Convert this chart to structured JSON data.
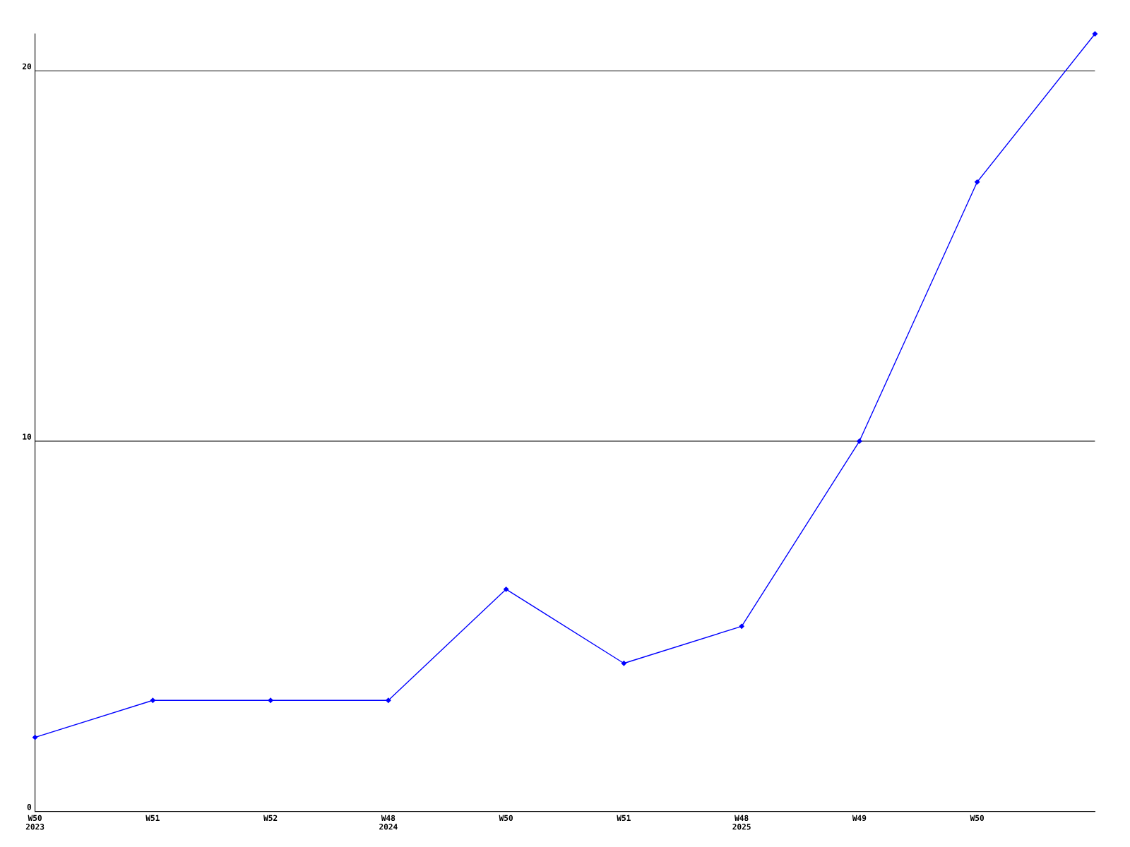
{
  "chart_data": {
    "type": "line",
    "categories": [
      "W50\n2023",
      "W51",
      "W52",
      "W48\n2024",
      "W50",
      "W51",
      "W48\n2025",
      "W49",
      "W50",
      null
    ],
    "series": [
      {
        "color": "#0000ff",
        "values": [
          2,
          3,
          3,
          3,
          6,
          4,
          5,
          10,
          17,
          21
        ]
      }
    ],
    "ylim": [
      0,
      21
    ],
    "yticks": [
      0,
      10,
      20
    ],
    "grid": "y",
    "marker": "diamond",
    "line_style": "solid"
  }
}
